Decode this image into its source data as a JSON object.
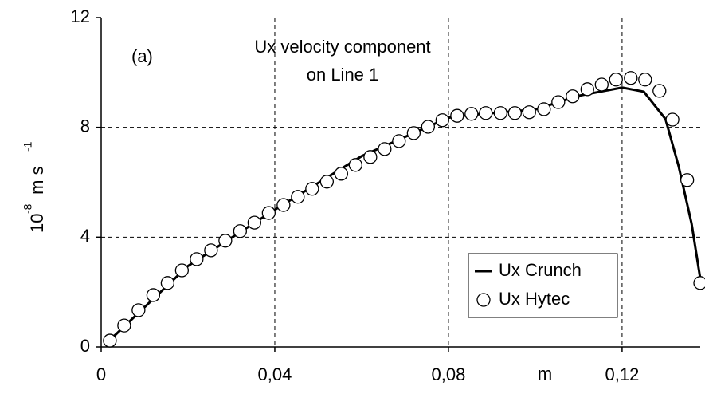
{
  "chart_data": {
    "type": "line",
    "title_lines": [
      "Ux velocity component",
      "on Line 1"
    ],
    "annotation": "(a)",
    "xlabel": "m",
    "ylabel": {
      "base": "10",
      "exp": "-8",
      "unit": " m s",
      "unit_exp": "-1"
    },
    "xlim": [
      0,
      0.138
    ],
    "xticks": [
      0,
      {
        "value": 0.04,
        "label": "0,04"
      },
      {
        "value": 0.08,
        "label": "0,08"
      },
      {
        "value": 0.12,
        "label": "0,12"
      }
    ],
    "ylim": [
      0,
      12
    ],
    "yticks": [
      0,
      4,
      8,
      12
    ],
    "grid": true,
    "legend": "lower right",
    "series": [
      {
        "name": "Ux Crunch",
        "color": "#000000",
        "style": "line",
        "x": [
          0.002,
          0.02,
          0.04,
          0.06,
          0.075,
          0.08,
          0.085,
          0.1,
          0.11,
          0.12,
          0.125,
          0.13,
          0.133,
          0.136,
          0.138
        ],
        "values": [
          0.25,
          2.95,
          5.0,
          6.95,
          8.0,
          8.35,
          8.45,
          8.65,
          9.15,
          9.45,
          9.3,
          8.3,
          6.6,
          4.5,
          2.5
        ]
      },
      {
        "name": "Ux Hytec",
        "color": "#000000",
        "style": "markers",
        "x": [
          0.002,
          0.0053,
          0.0086,
          0.012,
          0.0153,
          0.0186,
          0.022,
          0.0253,
          0.0286,
          0.032,
          0.0353,
          0.0386,
          0.042,
          0.0453,
          0.0486,
          0.052,
          0.0553,
          0.0586,
          0.062,
          0.0653,
          0.0686,
          0.072,
          0.0753,
          0.0786,
          0.082,
          0.0853,
          0.0886,
          0.092,
          0.0953,
          0.0986,
          0.102,
          0.1053,
          0.1086,
          0.112,
          0.1153,
          0.1186,
          0.122,
          0.1253,
          0.1286,
          0.1316,
          0.135,
          0.138
        ],
        "values": [
          0.23,
          0.78,
          1.34,
          1.89,
          2.33,
          2.79,
          3.2,
          3.52,
          3.87,
          4.22,
          4.53,
          4.88,
          5.17,
          5.47,
          5.76,
          6.02,
          6.31,
          6.63,
          6.92,
          7.21,
          7.5,
          7.79,
          8.02,
          8.26,
          8.42,
          8.49,
          8.52,
          8.52,
          8.52,
          8.55,
          8.66,
          8.92,
          9.13,
          9.39,
          9.56,
          9.74,
          9.8,
          9.74,
          9.33,
          8.28,
          6.08,
          2.33
        ]
      }
    ]
  }
}
